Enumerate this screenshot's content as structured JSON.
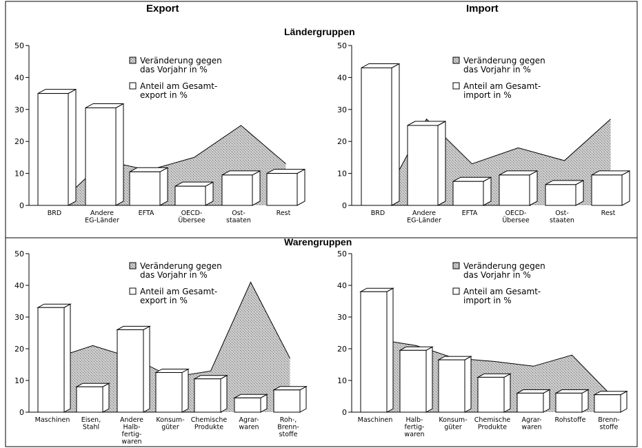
{
  "headers": {
    "export": "Export",
    "import": "Import",
    "laendergruppen": "Ländergruppen",
    "warengruppen": "Warengruppen"
  },
  "colors": {
    "line": "#000000",
    "bar_fill": "#ffffff",
    "area_fill": "#bdbdbd",
    "background": "#ffffff"
  },
  "chart_data": [
    {
      "type": "bar",
      "legend": [
        {
          "label": [
            "Veränderung gegen",
            "das Vorjahr in %"
          ],
          "style": "stippled"
        },
        {
          "label": [
            "Anteil am Gesamt-",
            "export in %"
          ],
          "style": "open"
        }
      ],
      "ylim": [
        0,
        50
      ],
      "yticks": [
        "0",
        "10",
        "20",
        "30",
        "40",
        "50"
      ],
      "categories": [
        [
          "BRD"
        ],
        [
          "Andere",
          "EG-Länder"
        ],
        [
          "EFTA"
        ],
        [
          "OECD-",
          "Übersee"
        ],
        [
          "Ost-",
          "staaten"
        ],
        [
          "Rest"
        ]
      ],
      "series": [
        {
          "values": [
            0,
            14,
            11,
            15,
            25,
            13
          ]
        },
        {
          "values": [
            35,
            30.5,
            10.5,
            6,
            9.5,
            10
          ]
        }
      ]
    },
    {
      "type": "bar",
      "legend": [
        {
          "label": [
            "Veränderung gegen",
            "das Vorjahr in %"
          ],
          "style": "stippled"
        },
        {
          "label": [
            "Anteil am Gesamt-",
            "import in %"
          ],
          "style": "open"
        }
      ],
      "ylim": [
        0,
        50
      ],
      "yticks": [
        "0",
        "10",
        "20",
        "30",
        "40",
        "50"
      ],
      "categories": [
        [
          "BRD"
        ],
        [
          "Andere",
          "EG-Länder"
        ],
        [
          "EFTA"
        ],
        [
          "OECD-",
          "Übersee"
        ],
        [
          "Ost-",
          "staaten"
        ],
        [
          "Rest"
        ]
      ],
      "series": [
        {
          "values": [
            0,
            27,
            13,
            18,
            14,
            27
          ]
        },
        {
          "values": [
            43,
            25,
            7.5,
            9.5,
            6.5,
            9.5
          ]
        }
      ]
    },
    {
      "type": "bar",
      "legend": [
        {
          "label": [
            "Veränderung gegen",
            "das Vorjahr in %"
          ],
          "style": "stippled"
        },
        {
          "label": [
            "Anteil am Gesamt-",
            "export in %"
          ],
          "style": "open"
        }
      ],
      "ylim": [
        0,
        50
      ],
      "yticks": [
        "0",
        "10",
        "20",
        "30",
        "40",
        "50"
      ],
      "categories": [
        [
          "Maschinen"
        ],
        [
          "Eisen,",
          "Stahl"
        ],
        [
          "Andere",
          "Halb-",
          "fertig-",
          "waren"
        ],
        [
          "Konsum-",
          "güter"
        ],
        [
          "Chemische",
          "Produkte"
        ],
        [
          "Agrar-",
          "waren"
        ],
        [
          "Roh-,",
          "Brenn-",
          "stoffe"
        ]
      ],
      "series": [
        {
          "values": [
            17,
            21,
            17,
            11,
            13,
            41,
            17
          ]
        },
        {
          "values": [
            33,
            8,
            26,
            12.5,
            10.5,
            4.5,
            7
          ]
        }
      ]
    },
    {
      "type": "bar",
      "legend": [
        {
          "label": [
            "Veränderung gegen",
            "das Vorjahr in %"
          ],
          "style": "stippled"
        },
        {
          "label": [
            "Anteil am Gesamt-",
            "import in %"
          ],
          "style": "open"
        }
      ],
      "ylim": [
        0,
        50
      ],
      "yticks": [
        "0",
        "10",
        "20",
        "30",
        "40",
        "50"
      ],
      "categories": [
        [
          "Maschinen"
        ],
        [
          "Halb-",
          "fertig-",
          "waren"
        ],
        [
          "Konsum-",
          "güter"
        ],
        [
          "Chemische",
          "Produkte"
        ],
        [
          "Agrar-",
          "waren"
        ],
        [
          "Rohstoffe"
        ],
        [
          "Brenn-",
          "stoffe"
        ]
      ],
      "series": [
        {
          "values": [
            23,
            21,
            17,
            16,
            14.5,
            18,
            5.5
          ]
        },
        {
          "values": [
            38,
            19.5,
            16.5,
            11,
            6,
            6,
            5.5
          ]
        }
      ]
    }
  ]
}
